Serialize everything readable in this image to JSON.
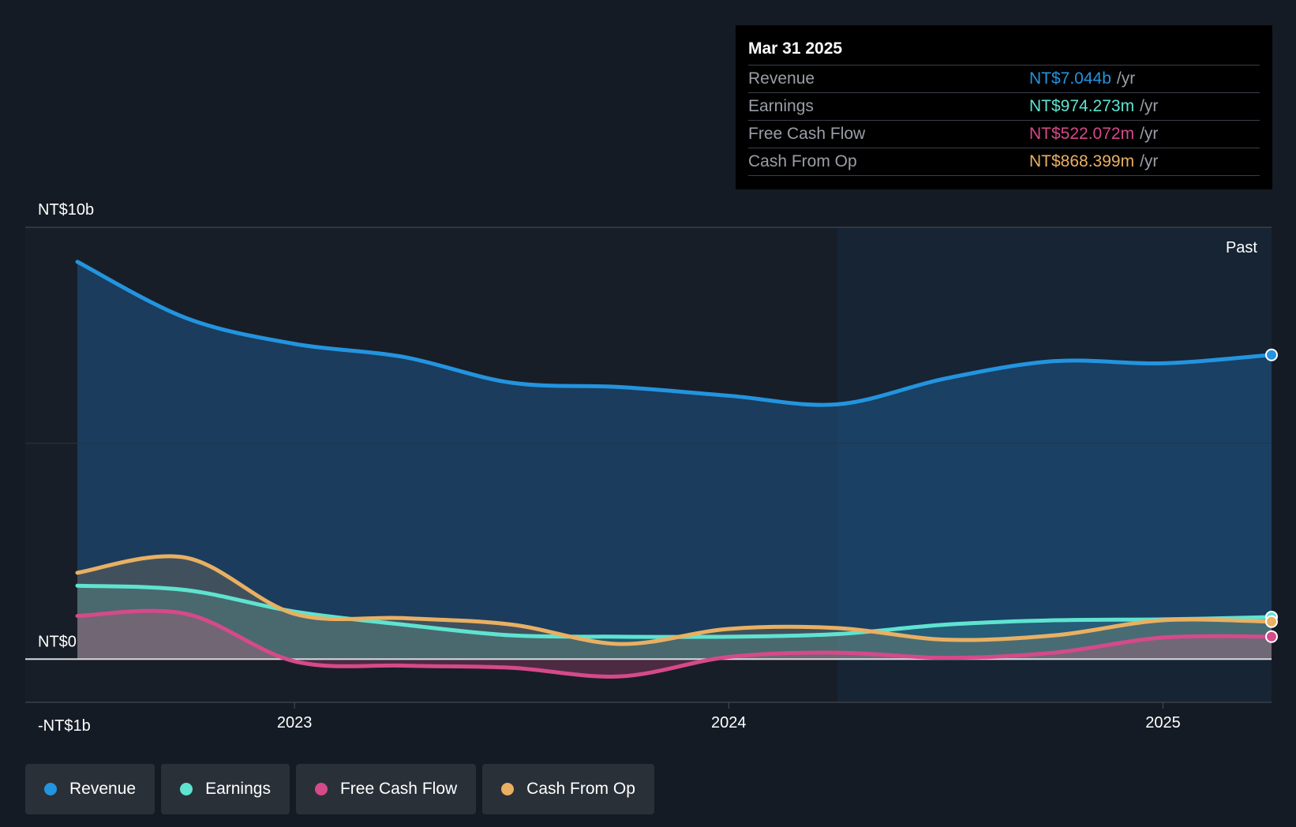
{
  "tooltip": {
    "date": "Mar 31 2025",
    "rows": [
      {
        "name": "Revenue",
        "value": "NT$7.044b",
        "unit": "/yr",
        "color": "#2394df"
      },
      {
        "name": "Earnings",
        "value": "NT$974.273m",
        "unit": "/yr",
        "color": "#5fe3d0"
      },
      {
        "name": "Free Cash Flow",
        "value": "NT$522.072m",
        "unit": "/yr",
        "color": "#d54a8a"
      },
      {
        "name": "Cash From Op",
        "value": "NT$868.399m",
        "unit": "/yr",
        "color": "#e9b062"
      }
    ]
  },
  "past_label": "Past",
  "legend": [
    {
      "label": "Revenue",
      "color": "#2394df"
    },
    {
      "label": "Earnings",
      "color": "#5fe3d0"
    },
    {
      "label": "Free Cash Flow",
      "color": "#d54a8a"
    },
    {
      "label": "Cash From Op",
      "color": "#e9b062"
    }
  ],
  "chart_data": {
    "type": "line",
    "y_tick_labels": [
      "NT$10b",
      "NT$0",
      "-NT$1b"
    ],
    "x_tick_labels": [
      "2023",
      "2024",
      "2025"
    ],
    "ylim": [
      -1,
      10
    ],
    "xlim": [
      2022.38,
      2025.25
    ],
    "x_ticks": [
      2023,
      2024,
      2025
    ],
    "grid": true,
    "past_region_start": 2024.25,
    "series": [
      {
        "name": "Revenue",
        "color": "#2394df",
        "x": [
          2022.5,
          2022.75,
          2023.0,
          2023.25,
          2023.5,
          2023.75,
          2024.0,
          2024.25,
          2024.5,
          2024.75,
          2025.0,
          2025.25
        ],
        "y": [
          9.2,
          7.9,
          7.3,
          7.0,
          6.4,
          6.3,
          6.1,
          5.9,
          6.5,
          6.9,
          6.85,
          7.044
        ]
      },
      {
        "name": "Earnings",
        "color": "#5fe3d0",
        "x": [
          2022.5,
          2022.75,
          2023.0,
          2023.25,
          2023.5,
          2023.75,
          2024.0,
          2024.25,
          2024.5,
          2024.75,
          2025.0,
          2025.25
        ],
        "y": [
          1.7,
          1.6,
          1.1,
          0.8,
          0.55,
          0.52,
          0.52,
          0.58,
          0.8,
          0.9,
          0.92,
          0.974273
        ]
      },
      {
        "name": "Free Cash Flow",
        "color": "#d54a8a",
        "x": [
          2022.5,
          2022.75,
          2023.0,
          2023.25,
          2023.5,
          2023.75,
          2024.0,
          2024.25,
          2024.5,
          2024.75,
          2025.0,
          2025.25
        ],
        "y": [
          1.0,
          1.05,
          -0.05,
          -0.15,
          -0.2,
          -0.4,
          0.05,
          0.15,
          0.03,
          0.15,
          0.5,
          0.522072
        ]
      },
      {
        "name": "Cash From Op",
        "color": "#e9b062",
        "x": [
          2022.5,
          2022.75,
          2023.0,
          2023.25,
          2023.5,
          2023.75,
          2024.0,
          2024.25,
          2024.5,
          2024.75,
          2025.0,
          2025.25
        ],
        "y": [
          2.0,
          2.35,
          1.05,
          0.95,
          0.8,
          0.35,
          0.7,
          0.72,
          0.45,
          0.55,
          0.9,
          0.868399
        ]
      }
    ]
  }
}
